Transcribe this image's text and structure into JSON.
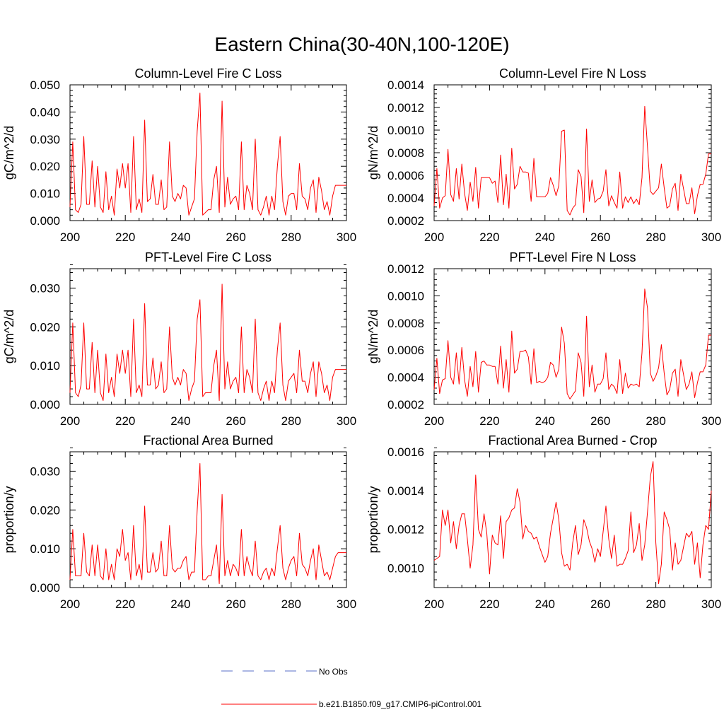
{
  "figure": {
    "title": "Eastern China(30-40N,100-120E)"
  },
  "legend": {
    "entries": [
      {
        "label": "No Obs",
        "color": "#5a6fc8",
        "style": "dashed"
      },
      {
        "label": "b.e21.B1850.f09_g17.CMIP6-piControl.001",
        "color": "#ff0000",
        "style": "solid"
      }
    ]
  },
  "chart_data": [
    {
      "type": "line",
      "title": "Column-Level Fire C Loss",
      "xlabel": "",
      "ylabel": "gC/m^2/d",
      "xlim": [
        200,
        300
      ],
      "ylim": [
        0,
        0.05
      ],
      "xticks": [
        "200",
        "220",
        "240",
        "260",
        "280",
        "300"
      ],
      "yticks": [
        "0.000",
        "0.010",
        "0.020",
        "0.030",
        "0.040",
        "0.050"
      ],
      "series": [
        {
          "name": "b.e21.B1850.f09_g17.CMIP6-piControl.001",
          "color": "#ff0000",
          "x_start": 200,
          "values": [
            0.005,
            0.029,
            0.004,
            0.003,
            0.006,
            0.031,
            0.006,
            0.006,
            0.022,
            0.005,
            0.02,
            0.005,
            0.003,
            0.018,
            0.004,
            0.009,
            0.002,
            0.019,
            0.012,
            0.021,
            0.012,
            0.021,
            0.003,
            0.031,
            0.004,
            0.008,
            0.003,
            0.037,
            0.007,
            0.008,
            0.017,
            0.006,
            0.006,
            0.015,
            0.004,
            0.005,
            0.029,
            0.009,
            0.007,
            0.01,
            0.008,
            0.013,
            0.012,
            0.002,
            0.005,
            0.008,
            0.033,
            0.047,
            0.002,
            0.003,
            0.004,
            0.004,
            0.015,
            0.02,
            0.003,
            0.044,
            0.005,
            0.016,
            0.006,
            0.008,
            0.009,
            0.004,
            0.029,
            0.004,
            0.013,
            0.01,
            0.004,
            0.03,
            0.004,
            0.002,
            0.005,
            0.009,
            0.002,
            0.009,
            0.004,
            0.02,
            0.031,
            0.007,
            0.002,
            0.009,
            0.01,
            0.01,
            0.004,
            0.021,
            0.009,
            0.008,
            0.004,
            0.012,
            0.015,
            0.003,
            0.016,
            0.011,
            0.004,
            0.007,
            0.002,
            0.009,
            0.013,
            0.013,
            0.013,
            0.013,
            0.013
          ]
        }
      ]
    },
    {
      "type": "line",
      "title": "Column-Level Fire N Loss",
      "xlabel": "",
      "ylabel": "gN/m^2/d",
      "xlim": [
        200,
        300
      ],
      "ylim": [
        0.0002,
        0.0014
      ],
      "xticks": [
        "200",
        "220",
        "240",
        "260",
        "280",
        "300"
      ],
      "yticks": [
        "0.0002",
        "0.0004",
        "0.0006",
        "0.0008",
        "0.0010",
        "0.0012",
        "0.0014"
      ],
      "series": [
        {
          "name": "b.e21.B1850.f09_g17.CMIP6-piControl.001",
          "color": "#ff0000",
          "x_start": 200,
          "values": [
            0.00033,
            0.00066,
            0.00031,
            0.0004,
            0.00042,
            0.00083,
            0.00043,
            0.00037,
            0.00066,
            0.00039,
            0.0007,
            0.00044,
            0.00029,
            0.00054,
            0.00037,
            0.00067,
            0.00031,
            0.00058,
            0.00058,
            0.00058,
            0.00058,
            0.00053,
            0.00055,
            0.00036,
            0.00078,
            0.00034,
            0.00061,
            0.00031,
            0.00084,
            0.00048,
            0.00052,
            0.00068,
            0.00063,
            0.00063,
            0.00062,
            0.00037,
            0.00075,
            0.00041,
            0.00041,
            0.00041,
            0.00041,
            0.00044,
            0.00058,
            0.00051,
            0.00042,
            0.00051,
            0.00099,
            0.001,
            0.00029,
            0.00025,
            0.00031,
            0.00034,
            0.00065,
            0.00059,
            0.00027,
            0.00101,
            0.00037,
            0.00056,
            0.00036,
            0.00039,
            0.0004,
            0.00046,
            0.00065,
            0.00033,
            0.00042,
            0.00036,
            0.00031,
            0.00063,
            0.00031,
            0.00041,
            0.00036,
            0.00041,
            0.00035,
            0.00039,
            0.00034,
            0.00058,
            0.00121,
            0.00085,
            0.00046,
            0.00043,
            0.00046,
            0.00049,
            0.0007,
            0.00049,
            0.00031,
            0.00033,
            0.00048,
            0.00053,
            0.00029,
            0.00061,
            0.00048,
            0.00035,
            0.00035,
            0.00049,
            0.00026,
            0.00042,
            0.00052,
            0.00052,
            0.00061,
            0.00079,
            0.00079
          ]
        }
      ]
    },
    {
      "type": "line",
      "title": "PFT-Level Fire C Loss",
      "xlabel": "",
      "ylabel": "gC/m^2/d",
      "xlim": [
        200,
        300
      ],
      "ylim": [
        0,
        0.035
      ],
      "xticks": [
        "200",
        "220",
        "240",
        "260",
        "280",
        "300"
      ],
      "yticks": [
        "0.000",
        "0.010",
        "0.020",
        "0.030"
      ],
      "series": [
        {
          "name": "b.e21.B1850.f09_g17.CMIP6-piControl.001",
          "color": "#ff0000",
          "x_start": 200,
          "values": [
            0.003,
            0.021,
            0.003,
            0.002,
            0.005,
            0.021,
            0.004,
            0.004,
            0.016,
            0.003,
            0.014,
            0.003,
            0.001,
            0.013,
            0.003,
            0.007,
            0.002,
            0.013,
            0.008,
            0.014,
            0.008,
            0.014,
            0.002,
            0.022,
            0.003,
            0.005,
            0.002,
            0.026,
            0.005,
            0.005,
            0.012,
            0.004,
            0.005,
            0.011,
            0.003,
            0.004,
            0.02,
            0.007,
            0.005,
            0.007,
            0.005,
            0.009,
            0.008,
            0.001,
            0.004,
            0.006,
            0.022,
            0.027,
            0.002,
            0.003,
            0.003,
            0.003,
            0.01,
            0.014,
            0.001,
            0.031,
            0.004,
            0.011,
            0.004,
            0.006,
            0.007,
            0.003,
            0.02,
            0.003,
            0.009,
            0.007,
            0.003,
            0.022,
            0.003,
            0.001,
            0.004,
            0.006,
            0.001,
            0.006,
            0.003,
            0.014,
            0.021,
            0.005,
            0.001,
            0.006,
            0.007,
            0.008,
            0.003,
            0.014,
            0.006,
            0.006,
            0.003,
            0.008,
            0.011,
            0.002,
            0.011,
            0.008,
            0.003,
            0.005,
            0.001,
            0.007,
            0.009,
            0.009,
            0.009,
            0.009,
            0.009
          ]
        }
      ]
    },
    {
      "type": "line",
      "title": "PFT-Level Fire N Loss",
      "xlabel": "",
      "ylabel": "gN/m^2/d",
      "xlim": [
        200,
        300
      ],
      "ylim": [
        0.0002,
        0.0012
      ],
      "xticks": [
        "200",
        "220",
        "240",
        "260",
        "280",
        "300"
      ],
      "yticks": [
        "0.0002",
        "0.0004",
        "0.0006",
        "0.0008",
        "0.0010",
        "0.0012"
      ],
      "series": [
        {
          "name": "b.e21.B1850.f09_g17.CMIP6-piControl.001",
          "color": "#ff0000",
          "x_start": 200,
          "values": [
            0.00031,
            0.00054,
            0.00028,
            0.00038,
            0.00039,
            0.00067,
            0.0004,
            0.00035,
            0.00058,
            0.00035,
            0.00062,
            0.00038,
            0.00026,
            0.00048,
            0.00033,
            0.00059,
            0.00029,
            0.00051,
            0.00052,
            0.00049,
            0.00049,
            0.00048,
            0.00048,
            0.00035,
            0.00063,
            0.00032,
            0.00053,
            0.00029,
            0.00074,
            0.00043,
            0.00046,
            0.00059,
            0.00059,
            0.0006,
            0.00055,
            0.00035,
            0.00061,
            0.00036,
            0.00037,
            0.00036,
            0.00037,
            0.0004,
            0.00051,
            0.00049,
            0.0004,
            0.00046,
            0.00077,
            0.00065,
            0.00028,
            0.00024,
            0.00027,
            0.0003,
            0.00058,
            0.00051,
            0.00026,
            0.00085,
            0.00033,
            0.00049,
            0.00029,
            0.00035,
            0.00035,
            0.00039,
            0.00058,
            0.00031,
            0.00035,
            0.00033,
            0.00028,
            0.00053,
            0.00028,
            0.00043,
            0.00032,
            0.00035,
            0.00034,
            0.00035,
            0.00033,
            0.00058,
            0.00105,
            0.00091,
            0.00043,
            0.00037,
            0.00041,
            0.00047,
            0.00064,
            0.00043,
            0.00027,
            0.00031,
            0.00043,
            0.00046,
            0.00026,
            0.00053,
            0.00042,
            0.00031,
            0.00035,
            0.00044,
            0.00025,
            0.00036,
            0.00044,
            0.00044,
            0.00049,
            0.00071,
            0.00071
          ]
        }
      ]
    },
    {
      "type": "line",
      "title": "Fractional Area Burned",
      "xlabel": "",
      "ylabel": "proportion/y",
      "xlim": [
        200,
        300
      ],
      "ylim": [
        0,
        0.035
      ],
      "xticks": [
        "200",
        "220",
        "240",
        "260",
        "280",
        "300"
      ],
      "yticks": [
        "0.000",
        "0.010",
        "0.020",
        "0.030"
      ],
      "series": [
        {
          "name": "b.e21.B1850.f09_g17.CMIP6-piControl.001",
          "color": "#ff0000",
          "x_start": 200,
          "values": [
            0.002,
            0.015,
            0.003,
            0.003,
            0.003,
            0.014,
            0.004,
            0.003,
            0.011,
            0.003,
            0.011,
            0.003,
            0.002,
            0.01,
            0.002,
            0.006,
            0.002,
            0.01,
            0.008,
            0.015,
            0.007,
            0.009,
            0.002,
            0.016,
            0.003,
            0.006,
            0.002,
            0.021,
            0.004,
            0.004,
            0.009,
            0.004,
            0.005,
            0.012,
            0.003,
            0.003,
            0.016,
            0.005,
            0.004,
            0.005,
            0.005,
            0.007,
            0.008,
            0.002,
            0.004,
            0.004,
            0.02,
            0.032,
            0.002,
            0.002,
            0.003,
            0.003,
            0.007,
            0.011,
            0.001,
            0.024,
            0.003,
            0.007,
            0.003,
            0.006,
            0.005,
            0.003,
            0.015,
            0.003,
            0.008,
            0.005,
            0.003,
            0.012,
            0.003,
            0.002,
            0.004,
            0.005,
            0.002,
            0.005,
            0.003,
            0.01,
            0.016,
            0.005,
            0.002,
            0.005,
            0.007,
            0.008,
            0.003,
            0.014,
            0.006,
            0.005,
            0.003,
            0.007,
            0.01,
            0.002,
            0.011,
            0.007,
            0.003,
            0.004,
            0.002,
            0.005,
            0.008,
            0.009,
            0.009,
            0.009,
            0.009
          ]
        }
      ]
    },
    {
      "type": "line",
      "title": "Fractional Area Burned - Crop",
      "xlabel": "",
      "ylabel": "proportion/y",
      "xlim": [
        200,
        300
      ],
      "ylim": [
        0.0009,
        0.0016
      ],
      "xticks": [
        "200",
        "220",
        "240",
        "260",
        "280",
        "300"
      ],
      "yticks": [
        "0.0010",
        "0.0012",
        "0.0014",
        "0.0016"
      ],
      "series": [
        {
          "name": "b.e21.B1850.f09_g17.CMIP6-piControl.001",
          "color": "#ff0000",
          "x_start": 200,
          "values": [
            0.00104,
            0.00105,
            0.00106,
            0.0013,
            0.00122,
            0.0013,
            0.00113,
            0.00124,
            0.0011,
            0.00122,
            0.00128,
            0.00128,
            0.00115,
            0.001,
            0.00112,
            0.00148,
            0.0012,
            0.00116,
            0.00128,
            0.00118,
            0.00097,
            0.00117,
            0.00113,
            0.00112,
            0.00127,
            0.00105,
            0.00124,
            0.00126,
            0.0013,
            0.00131,
            0.00141,
            0.00134,
            0.00115,
            0.00122,
            0.00119,
            0.00118,
            0.00115,
            0.00116,
            0.00111,
            0.00107,
            0.00103,
            0.00106,
            0.00118,
            0.00126,
            0.00134,
            0.00125,
            0.00108,
            0.00101,
            0.00102,
            0.00099,
            0.00113,
            0.00122,
            0.00107,
            0.00112,
            0.00125,
            0.00121,
            0.00114,
            0.0011,
            0.00103,
            0.0011,
            0.00106,
            0.00119,
            0.00132,
            0.00115,
            0.00105,
            0.00117,
            0.00101,
            0.00102,
            0.00102,
            0.00105,
            0.00109,
            0.00129,
            0.00108,
            0.00112,
            0.00123,
            0.00104,
            0.00112,
            0.00129,
            0.00147,
            0.00155,
            0.00113,
            0.00092,
            0.00102,
            0.00129,
            0.00125,
            0.0012,
            0.00099,
            0.00113,
            0.00102,
            0.00104,
            0.00111,
            0.00118,
            0.00116,
            0.00119,
            0.00102,
            0.00113,
            0.00095,
            0.00112,
            0.00122,
            0.0012,
            0.0014
          ]
        }
      ]
    }
  ]
}
